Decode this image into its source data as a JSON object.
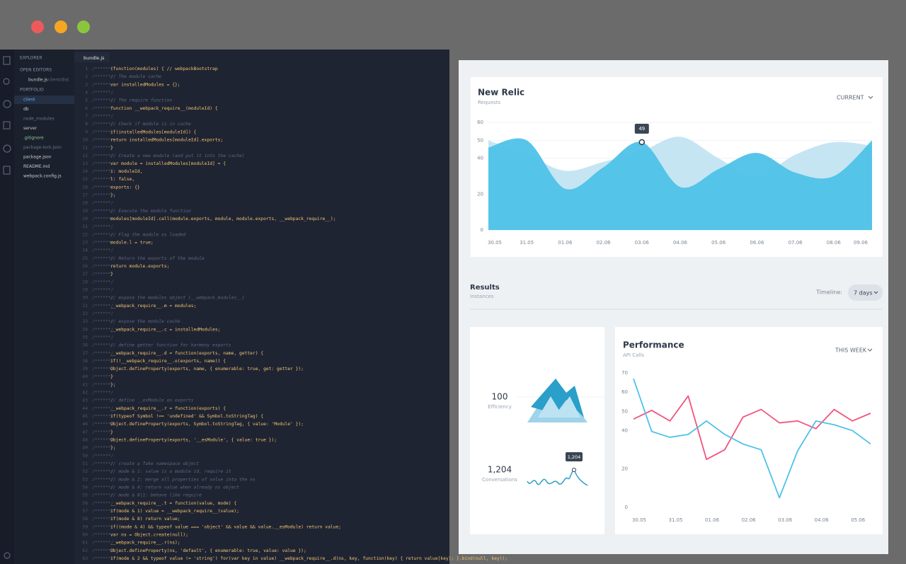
{
  "window": {
    "sidebar": {
      "explorer": "EXPLORER",
      "open_editors": "OPEN EDITORS",
      "open_file": "bundle.js",
      "open_file_path": "client/dist",
      "project": "PORTFOLIO",
      "files": [
        "client",
        "db",
        "node_modules",
        "server",
        ".gitignore",
        "package-lock.json",
        "package.json",
        "README.md",
        "webpack.config.js"
      ]
    },
    "editor": {
      "tab": "bundle.js",
      "gutter_prefix": "/******/",
      "lines": [
        {
          "num": 1,
          "text": " (function(modules) { // webpackBootstrap"
        },
        {
          "num": 2,
          "text": " // The module cache"
        },
        {
          "num": 3,
          "text": " var installedModules = {};"
        },
        {
          "num": 4
        },
        {
          "num": 5,
          "text": " // The require function"
        },
        {
          "num": 6,
          "text": " function __webpack_require__(moduleId) {"
        },
        {
          "num": 7
        },
        {
          "num": 8,
          "text": "   // Check if module is in cache"
        },
        {
          "num": 9,
          "text": "   if(installedModules[moduleId]) {"
        },
        {
          "num": 10,
          "text": "     return installedModules[moduleId].exports;"
        },
        {
          "num": 11,
          "text": "   }"
        },
        {
          "num": 12,
          "text": "   // Create a new module (and put it into the cache)"
        },
        {
          "num": 13,
          "text": "   var module = installedModules[moduleId] = {"
        },
        {
          "num": 14,
          "text": "     i: moduleId,"
        },
        {
          "num": 15,
          "text": "     l: false,"
        },
        {
          "num": 16,
          "text": "     exports: {}"
        },
        {
          "num": 17,
          "text": "   };"
        },
        {
          "num": 18
        },
        {
          "num": 19,
          "text": "   // Execute the module function"
        },
        {
          "num": 20,
          "text": "   modules[moduleId].call(module.exports, module, module.exports, __webpack_require__);"
        },
        {
          "num": 21
        },
        {
          "num": 22,
          "text": "   // Flag the module as loaded"
        },
        {
          "num": 23,
          "text": "   module.l = true;"
        },
        {
          "num": 24
        },
        {
          "num": 25,
          "text": "   // Return the exports of the module"
        },
        {
          "num": 26,
          "text": "   return module.exports;"
        },
        {
          "num": 27,
          "text": " }"
        },
        {
          "num": 28
        },
        {
          "num": 29
        },
        {
          "num": 30,
          "text": " // expose the modules object (__webpack_modules__)"
        },
        {
          "num": 31,
          "text": " __webpack_require__.m = modules;"
        },
        {
          "num": 32
        },
        {
          "num": 33,
          "text": " // expose the module cache"
        },
        {
          "num": 34,
          "text": " __webpack_require__.c = installedModules;"
        },
        {
          "num": 35
        },
        {
          "num": 36,
          "text": " // define getter function for harmony exports"
        },
        {
          "num": 37,
          "text": " __webpack_require__.d = function(exports, name, getter) {"
        },
        {
          "num": 38,
          "text": "   if(!__webpack_require__.o(exports, name)) {"
        },
        {
          "num": 39,
          "text": "     Object.defineProperty(exports, name, { enumerable: true, get: getter });"
        },
        {
          "num": 40,
          "text": "   }"
        },
        {
          "num": 41,
          "text": " };"
        },
        {
          "num": 42
        },
        {
          "num": 43,
          "text": " // define __esModule on exports"
        },
        {
          "num": 44,
          "text": " __webpack_require__.r = function(exports) {"
        },
        {
          "num": 45,
          "text": "   if(typeof Symbol !== 'undefined' && Symbol.toStringTag) {"
        },
        {
          "num": 46,
          "text": "     Object.defineProperty(exports, Symbol.toStringTag, { value: 'Module' });"
        },
        {
          "num": 47,
          "text": "   }"
        },
        {
          "num": 48,
          "text": "   Object.defineProperty(exports, '__esModule', { value: true });"
        },
        {
          "num": 49,
          "text": " };"
        },
        {
          "num": 50
        },
        {
          "num": 51,
          "text": " // create a fake namespace object"
        },
        {
          "num": 52,
          "text": " // mode & 1: value is a module id, require it"
        },
        {
          "num": 53,
          "text": " // mode & 2: merge all properties of value into the ns"
        },
        {
          "num": 54,
          "text": " // mode & 4: return value when already ns object"
        },
        {
          "num": 55,
          "text": " // mode & 8|1: behave like require"
        },
        {
          "num": 56,
          "text": " __webpack_require__.t = function(value, mode) {"
        },
        {
          "num": 57,
          "text": "   if(mode & 1) value = __webpack_require__(value);"
        },
        {
          "num": 58,
          "text": "   if(mode & 8) return value;"
        },
        {
          "num": 59,
          "text": "   if((mode & 4) && typeof value === 'object' && value && value.__esModule) return value;"
        },
        {
          "num": 60,
          "text": "   var ns = Object.create(null);"
        },
        {
          "num": 61,
          "text": "   __webpack_require__.r(ns);"
        },
        {
          "num": 62,
          "text": "   Object.defineProperty(ns, 'default', { enumerable: true, value: value });"
        },
        {
          "num": 63,
          "text": "   if(mode & 2 && typeof value != 'string') for(var key in value) __webpack_require__.d(ns, key, function(key) { return value[key]; }.bind(null, key));"
        }
      ]
    },
    "dashboard": {
      "new_relic": {
        "type": "area",
        "title": "New Relic",
        "subtitle": "Requests",
        "dropdown": "CURRENT",
        "categories": [
          "30.05",
          "31.05",
          "01.06",
          "02.06",
          "03.06",
          "04.06",
          "05.06",
          "06.06",
          "07.06",
          "08.06",
          "09.06"
        ],
        "series": [
          {
            "color": "#bfe2f2",
            "values": [
              50,
              42,
              33,
              38,
              44,
              52,
              40,
              30,
              42,
              49,
              47
            ]
          },
          {
            "color": "#4ec2e8",
            "values": [
              46,
              50,
              23,
              35,
              49,
              24,
              34,
              43,
              32,
              30,
              50
            ],
            "value_labels": [
              null,
              null,
              null,
              null,
              "49",
              null,
              null,
              null,
              null,
              null,
              null
            ]
          }
        ],
        "ylim": [
          0,
          60
        ],
        "yticks": [
          0,
          20,
          40,
          50,
          60
        ],
        "grid": true
      },
      "results": {
        "title": "Results",
        "subtitle": "Instances",
        "timeline_label": "Timeline:",
        "timeline_value": "7 days"
      },
      "stats": [
        {
          "value": "100",
          "label": "Efficiency"
        },
        {
          "value": "1,204",
          "label": "Conversations",
          "tooltip": "1,204"
        }
      ],
      "performance": {
        "type": "line",
        "title": "Performance",
        "subtitle": "API Calls",
        "dropdown": "THIS WEEK",
        "categories": [
          "30.05",
          null,
          "31.05",
          null,
          "01.06",
          null,
          "02.06",
          null,
          "03.06",
          null,
          "04.06",
          null,
          "05.06",
          null
        ],
        "series": [
          {
            "color": "#f2547d",
            "values": [
              46,
              50.5,
              45,
              58,
              25,
              30,
              47,
              51,
              44,
              45,
              41,
              51,
              45,
              49
            ]
          },
          {
            "color": "#4ec2e8",
            "values": [
              67,
              39.5,
              36.5,
              38,
              45,
              38,
              33,
              30,
              5,
              29.5,
              45,
              43,
              40,
              33
            ]
          }
        ],
        "ylim": [
          0,
          70
        ],
        "yticks": [
          0,
          20,
          40,
          50,
          60,
          70
        ],
        "grid": false
      }
    }
  }
}
